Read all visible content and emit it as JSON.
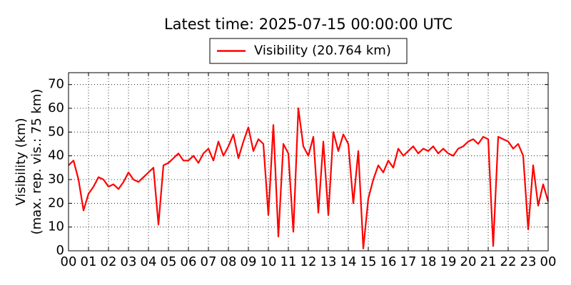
{
  "chart_data": {
    "type": "line",
    "title": "Latest time: 2025-07-15 00:00:00 UTC",
    "y_label": [
      "Visibility (km)",
      "(max. rep. vis.: 75 km)"
    ],
    "x": [
      0,
      0.25,
      0.5,
      0.75,
      1,
      1.25,
      1.5,
      1.75,
      2,
      2.25,
      2.5,
      2.75,
      3,
      3.25,
      3.5,
      3.75,
      4,
      4.25,
      4.5,
      4.75,
      5,
      5.25,
      5.5,
      5.75,
      6,
      6.25,
      6.5,
      6.75,
      7,
      7.25,
      7.5,
      7.75,
      8,
      8.25,
      8.5,
      8.75,
      9,
      9.25,
      9.5,
      9.75,
      10,
      10.25,
      10.5,
      10.75,
      11,
      11.25,
      11.5,
      11.75,
      12,
      12.25,
      12.5,
      12.75,
      13,
      13.25,
      13.5,
      13.75,
      14,
      14.25,
      14.5,
      14.75,
      15,
      15.25,
      15.5,
      15.75,
      16,
      16.25,
      16.5,
      16.75,
      17,
      17.25,
      17.5,
      17.75,
      18,
      18.25,
      18.5,
      18.75,
      19,
      19.25,
      19.5,
      19.75,
      20,
      20.25,
      20.5,
      20.75,
      21,
      21.25,
      21.5,
      21.75,
      22,
      22.25,
      22.5,
      22.75,
      23,
      23.25,
      23.5,
      23.75,
      24
    ],
    "series": [
      {
        "name": "Visibility (20.764 km)",
        "color": "#ff0000",
        "values": [
          36,
          38,
          30,
          17,
          24,
          27,
          31,
          30,
          27,
          28,
          26,
          29,
          33,
          30,
          29,
          31,
          33,
          35,
          11,
          36,
          37,
          39,
          41,
          38,
          38,
          40,
          37,
          41,
          43,
          38,
          46,
          40,
          44,
          49,
          39,
          46,
          52,
          42,
          47,
          45,
          15,
          53,
          6,
          45,
          41,
          8,
          60,
          44,
          40,
          48,
          16,
          46,
          15,
          50,
          42,
          49,
          45,
          20,
          42,
          1,
          22,
          30,
          36,
          33,
          38,
          35,
          43,
          40,
          42,
          44,
          41,
          43,
          42,
          44,
          41,
          43,
          41,
          40,
          43,
          44,
          46,
          47,
          45,
          48,
          47,
          2,
          48,
          47,
          46,
          43,
          45,
          40,
          9,
          36,
          19,
          28,
          20.764
        ]
      }
    ],
    "xlim": [
      0,
      24
    ],
    "xticks": [
      {
        "value": 0,
        "label": "00"
      },
      {
        "value": 1,
        "label": "01"
      },
      {
        "value": 2,
        "label": "02"
      },
      {
        "value": 3,
        "label": "03"
      },
      {
        "value": 4,
        "label": "04"
      },
      {
        "value": 5,
        "label": "05"
      },
      {
        "value": 6,
        "label": "06"
      },
      {
        "value": 7,
        "label": "07"
      },
      {
        "value": 8,
        "label": "08"
      },
      {
        "value": 9,
        "label": "09"
      },
      {
        "value": 10,
        "label": "10"
      },
      {
        "value": 11,
        "label": "11"
      },
      {
        "value": 12,
        "label": "12"
      },
      {
        "value": 13,
        "label": "13"
      },
      {
        "value": 14,
        "label": "14"
      },
      {
        "value": 15,
        "label": "15"
      },
      {
        "value": 16,
        "label": "16"
      },
      {
        "value": 17,
        "label": "17"
      },
      {
        "value": 18,
        "label": "18"
      },
      {
        "value": 19,
        "label": "19"
      },
      {
        "value": 20,
        "label": "20"
      },
      {
        "value": 21,
        "label": "21"
      },
      {
        "value": 22,
        "label": "22"
      },
      {
        "value": 23,
        "label": "23"
      },
      {
        "value": 24,
        "label": "00"
      }
    ],
    "ylim": [
      0,
      75
    ],
    "yticks": [
      0,
      10,
      20,
      30,
      40,
      50,
      60,
      70
    ],
    "grid": true,
    "legend": "top"
  }
}
